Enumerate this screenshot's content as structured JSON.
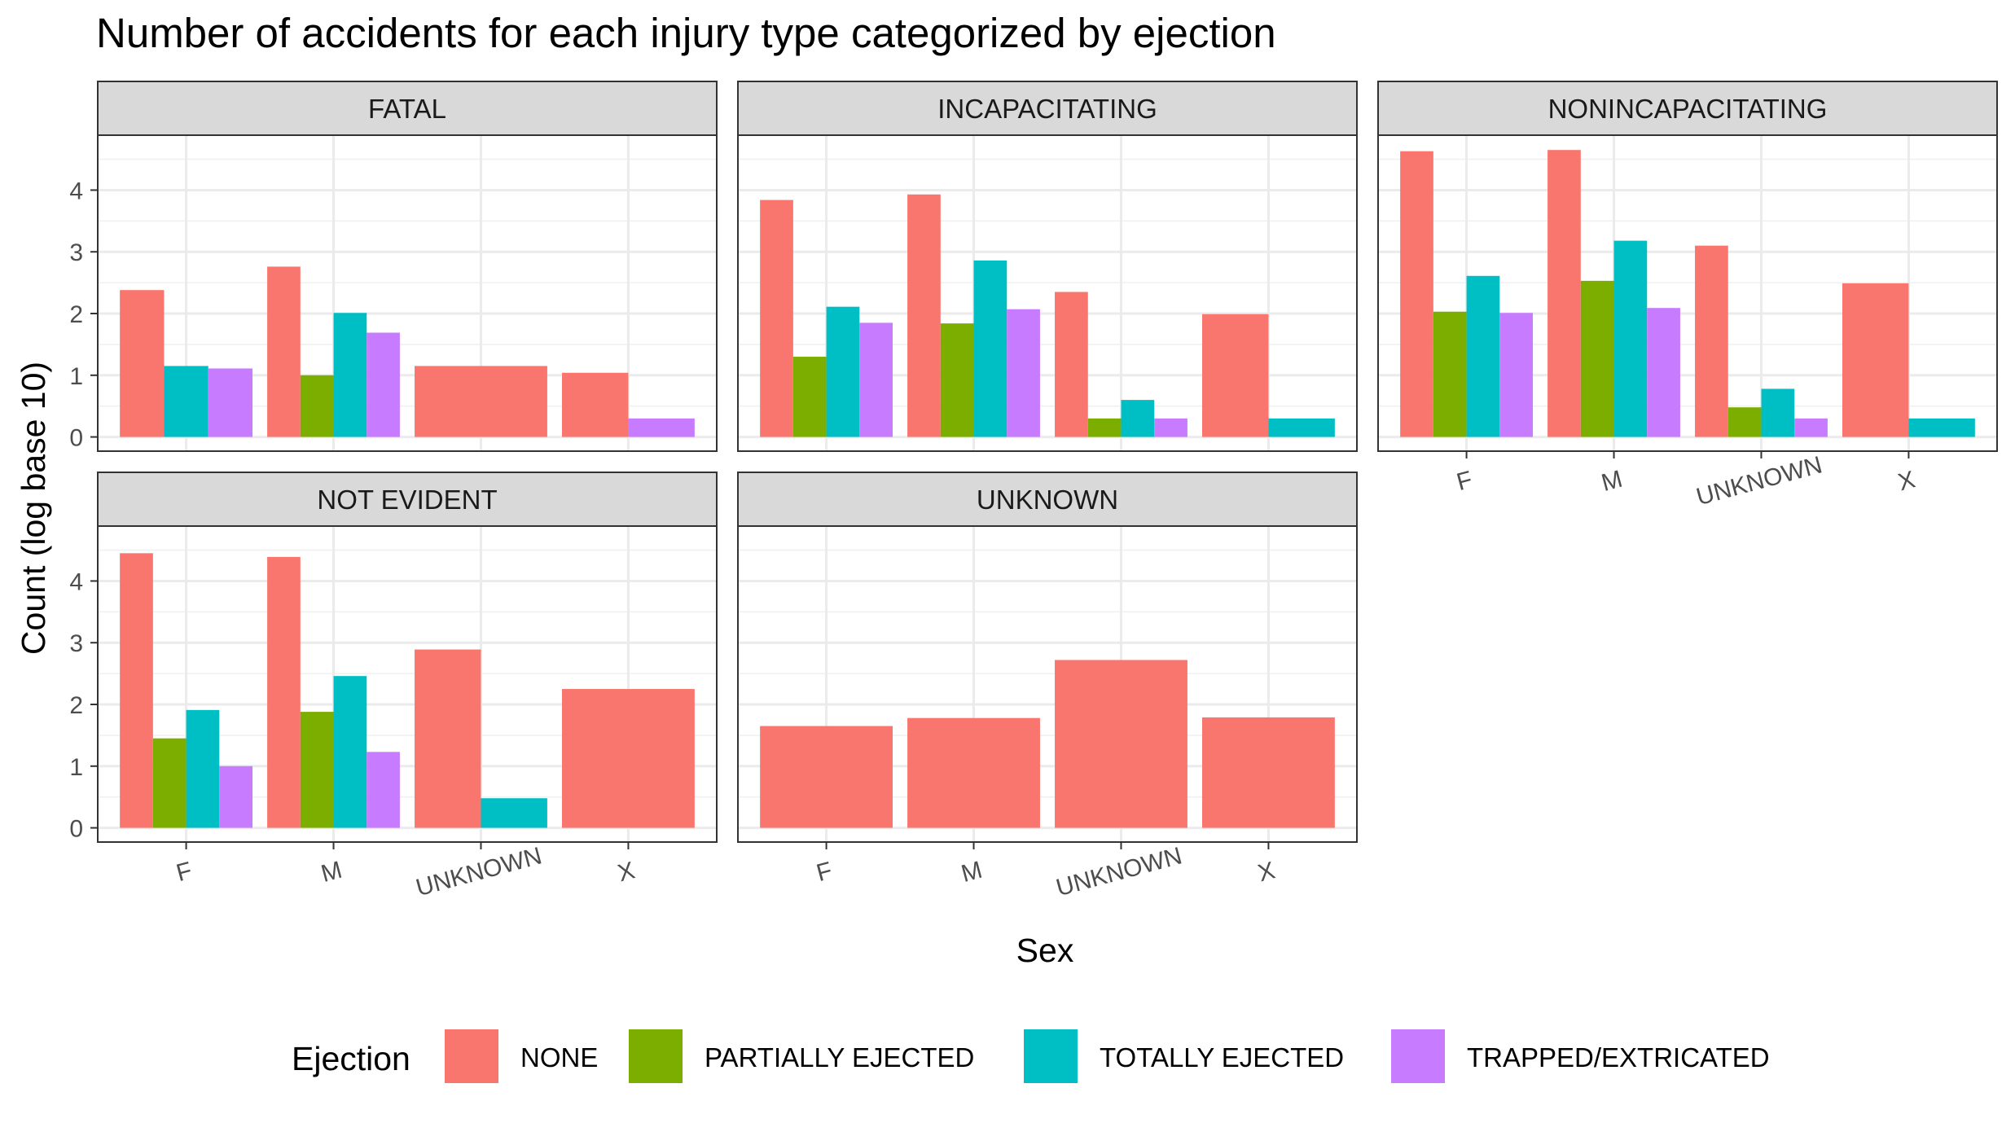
{
  "chart_data": {
    "type": "bar",
    "title": "Number of accidents for each injury type categorized by ejection",
    "xlabel": "Sex",
    "ylabel": "Count (log base 10)",
    "categories": [
      "F",
      "M",
      "UNKNOWN",
      "X"
    ],
    "ylim": [
      0,
      4.5
    ],
    "y_ticks": [
      "0",
      "1",
      "2",
      "3",
      "4"
    ],
    "grid": true,
    "legend": {
      "title": "Ejection",
      "position": "bottom",
      "entries": [
        {
          "name": "NONE",
          "color": "#F8766D"
        },
        {
          "name": "PARTIALLY EJECTED",
          "color": "#7CAE00"
        },
        {
          "name": "TOTALLY EJECTED",
          "color": "#00BFC4"
        },
        {
          "name": "TRAPPED/EXTRICATED",
          "color": "#C77CFF"
        }
      ]
    },
    "panels": [
      {
        "name": "FATAL",
        "bars": [
          {
            "x": "F",
            "groups": [
              [
                "NONE",
                2.38
              ],
              [
                "TOTALLY EJECTED",
                1.15
              ],
              [
                "TRAPPED/EXTRICATED",
                1.11
              ]
            ]
          },
          {
            "x": "M",
            "groups": [
              [
                "NONE",
                2.76
              ],
              [
                "PARTIALLY EJECTED",
                1.0
              ],
              [
                "TOTALLY EJECTED",
                2.01
              ],
              [
                "TRAPPED/EXTRICATED",
                1.69
              ]
            ]
          },
          {
            "x": "UNKNOWN",
            "groups": [
              [
                "NONE",
                1.15
              ]
            ]
          },
          {
            "x": "X",
            "groups": [
              [
                "NONE",
                1.04
              ],
              [
                "TRAPPED/EXTRICATED",
                0.3
              ]
            ]
          }
        ]
      },
      {
        "name": "INCAPACITATING",
        "bars": [
          {
            "x": "F",
            "groups": [
              [
                "NONE",
                3.84
              ],
              [
                "PARTIALLY EJECTED",
                1.3
              ],
              [
                "TOTALLY EJECTED",
                2.11
              ],
              [
                "TRAPPED/EXTRICATED",
                1.85
              ]
            ]
          },
          {
            "x": "M",
            "groups": [
              [
                "NONE",
                3.93
              ],
              [
                "PARTIALLY EJECTED",
                1.84
              ],
              [
                "TOTALLY EJECTED",
                2.86
              ],
              [
                "TRAPPED/EXTRICATED",
                2.07
              ]
            ]
          },
          {
            "x": "UNKNOWN",
            "groups": [
              [
                "NONE",
                2.35
              ],
              [
                "PARTIALLY EJECTED",
                0.3
              ],
              [
                "TOTALLY EJECTED",
                0.6
              ],
              [
                "TRAPPED/EXTRICATED",
                0.3
              ]
            ]
          },
          {
            "x": "X",
            "groups": [
              [
                "NONE",
                1.99
              ],
              [
                "TOTALLY EJECTED",
                0.3
              ]
            ]
          }
        ]
      },
      {
        "name": "NONINCAPACITATING",
        "bars": [
          {
            "x": "F",
            "groups": [
              [
                "NONE",
                4.63
              ],
              [
                "PARTIALLY EJECTED",
                2.03
              ],
              [
                "TOTALLY EJECTED",
                2.61
              ],
              [
                "TRAPPED/EXTRICATED",
                2.01
              ]
            ]
          },
          {
            "x": "M",
            "groups": [
              [
                "NONE",
                4.65
              ],
              [
                "PARTIALLY EJECTED",
                2.53
              ],
              [
                "TOTALLY EJECTED",
                3.18
              ],
              [
                "TRAPPED/EXTRICATED",
                2.09
              ]
            ]
          },
          {
            "x": "UNKNOWN",
            "groups": [
              [
                "NONE",
                3.1
              ],
              [
                "PARTIALLY EJECTED",
                0.48
              ],
              [
                "TOTALLY EJECTED",
                0.78
              ],
              [
                "TRAPPED/EXTRICATED",
                0.3
              ]
            ]
          },
          {
            "x": "X",
            "groups": [
              [
                "NONE",
                2.49
              ],
              [
                "TOTALLY EJECTED",
                0.3
              ]
            ]
          }
        ]
      },
      {
        "name": "NOT EVIDENT",
        "bars": [
          {
            "x": "F",
            "groups": [
              [
                "NONE",
                4.45
              ],
              [
                "PARTIALLY EJECTED",
                1.45
              ],
              [
                "TOTALLY EJECTED",
                1.91
              ],
              [
                "TRAPPED/EXTRICATED",
                1.0
              ]
            ]
          },
          {
            "x": "M",
            "groups": [
              [
                "NONE",
                4.39
              ],
              [
                "PARTIALLY EJECTED",
                1.88
              ],
              [
                "TOTALLY EJECTED",
                2.46
              ],
              [
                "TRAPPED/EXTRICATED",
                1.23
              ]
            ]
          },
          {
            "x": "UNKNOWN",
            "groups": [
              [
                "NONE",
                2.89
              ],
              [
                "TOTALLY EJECTED",
                0.48
              ]
            ]
          },
          {
            "x": "X",
            "groups": [
              [
                "NONE",
                2.25
              ]
            ]
          }
        ]
      },
      {
        "name": "UNKNOWN",
        "bars": [
          {
            "x": "F",
            "groups": [
              [
                "NONE",
                1.65
              ]
            ]
          },
          {
            "x": "M",
            "groups": [
              [
                "NONE",
                1.78
              ]
            ]
          },
          {
            "x": "UNKNOWN",
            "groups": [
              [
                "NONE",
                2.72
              ]
            ]
          },
          {
            "x": "X",
            "groups": [
              [
                "NONE",
                1.79
              ]
            ]
          }
        ]
      }
    ]
  }
}
